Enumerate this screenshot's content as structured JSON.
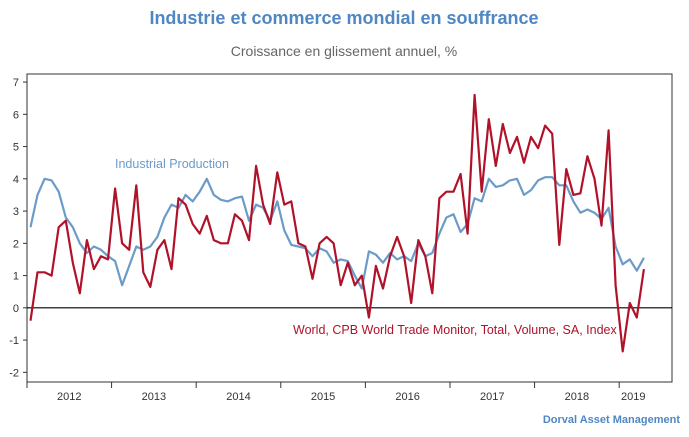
{
  "chart_data": {
    "type": "line",
    "title": "Industrie et commerce mondial en souffrance",
    "subtitle": "Croissance en glissement annuel, %",
    "source": "Dorval Asset Management",
    "categories": [
      "2012",
      null,
      null,
      null,
      null,
      null,
      null,
      null,
      null,
      null,
      null,
      null,
      "2013",
      null,
      null,
      null,
      null,
      null,
      null,
      null,
      null,
      null,
      null,
      null,
      "2014",
      null,
      null,
      null,
      null,
      null,
      null,
      null,
      null,
      null,
      null,
      null,
      "2015",
      null,
      null,
      null,
      null,
      null,
      null,
      null,
      null,
      null,
      null,
      null,
      "2016",
      null,
      null,
      null,
      null,
      null,
      null,
      null,
      null,
      null,
      null,
      null,
      "2017",
      null,
      null,
      null,
      null,
      null,
      null,
      null,
      null,
      null,
      null,
      null,
      "2018",
      null,
      null,
      null,
      null,
      null,
      null,
      null,
      null,
      null,
      null,
      null,
      "2019",
      null,
      null,
      null
    ],
    "series": [
      {
        "name": "World, CPB World Trade Monitor, Total, Volume, SA, Index",
        "color": "#b0122a",
        "values": [
          -0.4,
          1.1,
          1.1,
          1.0,
          2.5,
          2.7,
          1.4,
          0.45,
          2.1,
          1.2,
          1.6,
          1.5,
          3.7,
          2.0,
          1.8,
          3.8,
          1.1,
          0.65,
          1.8,
          2.1,
          1.2,
          3.4,
          3.2,
          2.6,
          2.3,
          2.85,
          2.1,
          2.0,
          2.0,
          2.9,
          2.7,
          2.1,
          4.4,
          3.2,
          2.6,
          4.2,
          3.2,
          3.3,
          2.0,
          1.9,
          0.9,
          2.0,
          2.2,
          2.0,
          0.7,
          1.4,
          0.7,
          1.0,
          -0.3,
          1.3,
          0.6,
          1.6,
          2.2,
          1.6,
          0.15,
          2.1,
          1.6,
          0.45,
          3.4,
          3.6,
          3.6,
          4.15,
          2.3,
          6.6,
          3.6,
          5.85,
          4.4,
          5.7,
          4.8,
          5.3,
          4.5,
          5.3,
          4.95,
          5.65,
          5.4,
          1.95,
          4.3,
          3.5,
          3.55,
          4.7,
          4.0,
          2.55,
          5.5,
          0.7,
          -1.35,
          0.15,
          -0.3,
          1.2
        ]
      },
      {
        "name": "Industrial Production",
        "color": "#6b9bc8",
        "values": [
          2.5,
          3.5,
          4.0,
          3.95,
          3.6,
          2.8,
          2.5,
          2.0,
          1.7,
          1.9,
          1.8,
          1.6,
          1.45,
          0.7,
          1.3,
          1.9,
          1.8,
          1.9,
          2.2,
          2.8,
          3.2,
          3.1,
          3.5,
          3.3,
          3.6,
          4.0,
          3.5,
          3.35,
          3.3,
          3.4,
          3.45,
          2.7,
          3.2,
          3.1,
          2.7,
          3.3,
          2.4,
          1.95,
          1.9,
          1.85,
          1.6,
          1.85,
          1.75,
          1.4,
          1.5,
          1.45,
          1.0,
          0.6,
          1.75,
          1.65,
          1.4,
          1.7,
          1.5,
          1.6,
          1.45,
          2.0,
          1.6,
          1.7,
          2.3,
          2.8,
          2.9,
          2.35,
          2.6,
          3.4,
          3.3,
          4.0,
          3.75,
          3.8,
          3.95,
          4.0,
          3.5,
          3.65,
          3.95,
          4.05,
          4.05,
          3.8,
          3.8,
          3.3,
          2.95,
          3.05,
          2.95,
          2.75,
          3.1,
          1.9,
          1.35,
          1.5,
          1.15,
          1.55
        ]
      }
    ],
    "ylim": [
      -2.3,
      7.25
    ],
    "yticks": [
      -2,
      -1,
      0,
      1,
      2,
      3,
      4,
      5,
      6,
      7
    ]
  }
}
